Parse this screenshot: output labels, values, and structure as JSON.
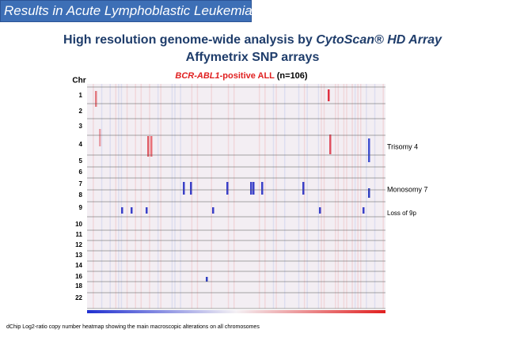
{
  "header": {
    "title": "Results in Acute Lymphoblastic Leukemia"
  },
  "title": {
    "line1": {
      "parts": [
        "High resolution genome-wide analysis by ",
        "CytoScan® HD Array"
      ]
    },
    "line2": "Affymetrix SNP arrays"
  },
  "heatmap": {
    "title_parts": [
      "BCR-ABL1",
      "-positive ALL",
      " (n=106)"
    ],
    "axis_label": "Chr",
    "chromosomes": [
      "1",
      "2",
      "3",
      "4",
      "5",
      "6",
      "7",
      "8",
      "9",
      "10",
      "11",
      "12",
      "13",
      "14",
      "16",
      "18",
      "22"
    ],
    "annotations": [
      "Trisomy 4",
      "Monosomy 7",
      "Loss of 9p"
    ]
  },
  "caption": "dChip Log2-ratio copy number heatmap showing the main macroscopic alterations on all chromosomes"
}
